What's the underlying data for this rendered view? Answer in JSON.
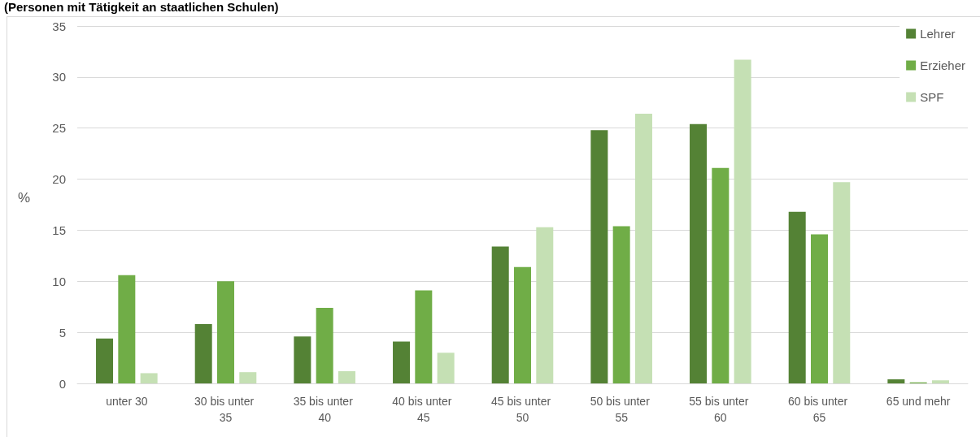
{
  "chart_data": {
    "type": "bar",
    "subtitle": "(Personen mit Tätigkeit an staatlichen Schulen)",
    "ylabel": "%",
    "categories": [
      "unter 30",
      "30 bis unter 35",
      "35 bis unter 40",
      "40 bis unter 45",
      "45 bis unter 50",
      "50 bis unter 55",
      "55 bis unter 60",
      "60 bis unter 65",
      "65 und mehr"
    ],
    "series": [
      {
        "name": "Lehrer",
        "color": "#548235",
        "values": [
          4.4,
          5.8,
          4.6,
          4.1,
          13.4,
          24.8,
          25.4,
          16.8,
          0.4
        ]
      },
      {
        "name": "Erzieher",
        "color": "#70ad47",
        "values": [
          10.6,
          10.0,
          7.4,
          9.1,
          11.4,
          15.4,
          21.1,
          14.6,
          0.1
        ]
      },
      {
        "name": "SPF",
        "color": "#c5e0b4",
        "values": [
          1.0,
          1.1,
          1.2,
          3.0,
          15.3,
          26.4,
          31.7,
          19.7,
          0.3
        ]
      }
    ],
    "ylim": [
      0,
      35
    ],
    "yticks": [
      0,
      5,
      10,
      15,
      20,
      25,
      30,
      35
    ],
    "grid": "y",
    "legend": "top right"
  }
}
